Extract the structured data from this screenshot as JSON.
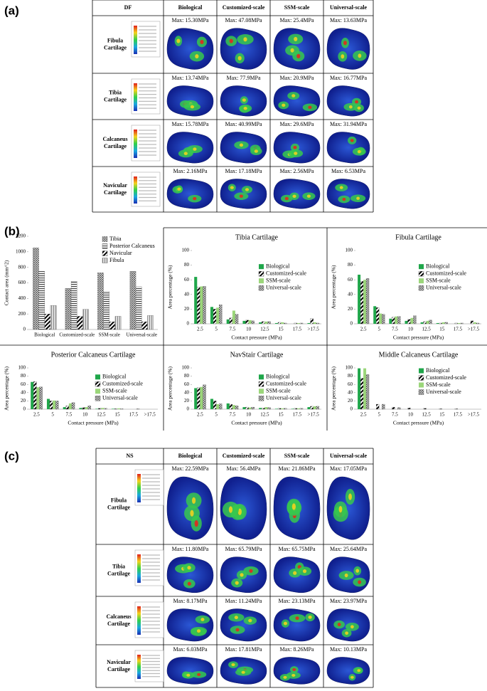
{
  "panel_a": {
    "label": "(a)",
    "header": [
      "DF",
      "Biological",
      "Customized-scale",
      "SSM-scale",
      "Universal-scale"
    ],
    "rows": [
      {
        "label": [
          "Fibula",
          "Cartilage"
        ],
        "maxima": [
          "Max: 15.30MPa",
          "Max: 47.08MPa",
          "Max: 25.4MPa",
          "Max: 13.63MPa"
        ]
      },
      {
        "label": [
          "Tibia",
          "Cartilage"
        ],
        "maxima": [
          "Max: 13.74MPa",
          "Max: 77.9MPa",
          "Max: 20.9MPa",
          "Max: 16.77MPa"
        ]
      },
      {
        "label": [
          "Calcaneus",
          "Cartilage"
        ],
        "maxima": [
          "Max: 15.78MPa",
          "Max: 40.99MPa",
          "Max: 29.6MPa",
          "Max: 31.94MPa"
        ]
      },
      {
        "label": [
          "Navicular",
          "Cartilage"
        ],
        "maxima": [
          "Max: 2.16MPa",
          "Max: 17.18MPa",
          "Max: 2.56MPa",
          "Max: 6.53MPa"
        ]
      }
    ]
  },
  "panel_b": {
    "label": "(b)"
  },
  "chart_data": [
    {
      "type": "bar",
      "ylabel": "Contact area (mm^2)",
      "categories": [
        "Biological",
        "Customized-scale",
        "SSM-scale",
        "Universal-scale"
      ],
      "ylim": [
        0,
        1200
      ],
      "yticks": [
        0,
        200,
        400,
        600,
        800,
        1000,
        1200
      ],
      "legend": "upper right",
      "series": [
        {
          "name": "Tibia",
          "color": "#555555",
          "pattern": "cross",
          "values": [
            1050,
            530,
            730,
            750
          ]
        },
        {
          "name": "Posterior Calcaneus",
          "color": "#555555",
          "pattern": "horizontal",
          "values": [
            750,
            620,
            490,
            550
          ]
        },
        {
          "name": "Navicular",
          "color": "#555555",
          "pattern": "diagonal",
          "values": [
            200,
            170,
            100,
            100
          ]
        },
        {
          "name": "Fibula",
          "color": "#999999",
          "pattern": "vertical",
          "values": [
            310,
            260,
            170,
            180
          ]
        }
      ]
    },
    {
      "type": "bar",
      "title": "Tibia Cartilage",
      "xlabel": "Contact pressure (MPa)",
      "ylabel": "Area percentage (%)",
      "categories": [
        "2.5",
        "5",
        "7.5",
        "10",
        "12.5",
        "15",
        "17.5",
        ">17.5"
      ],
      "ylim": [
        0,
        100
      ],
      "yticks": [
        0,
        20,
        40,
        60,
        80,
        100
      ],
      "legend": "center right",
      "series": [
        {
          "name": "Biological",
          "color": "#1fa64a",
          "pattern": "solid",
          "values": [
            64,
            23,
            6,
            4,
            2,
            1,
            0,
            1
          ]
        },
        {
          "name": "Customized-scale",
          "color": "#2e5fc4",
          "pattern": "diagonal",
          "values": [
            50,
            20,
            8,
            5,
            3,
            2,
            1,
            7
          ]
        },
        {
          "name": "SSM-scale",
          "color": "#9bd67a",
          "pattern": "solid",
          "values": [
            51,
            22,
            18,
            5,
            3,
            2,
            1,
            2
          ]
        },
        {
          "name": "Universal-scale",
          "color": "#777777",
          "pattern": "cross",
          "values": [
            51,
            26,
            13,
            4,
            3,
            1,
            1,
            1
          ]
        }
      ]
    },
    {
      "type": "bar",
      "title": "Fibula Cartilage",
      "xlabel": "Contact pressure (MPa)",
      "ylabel": "Area percentage (%)",
      "categories": [
        "2.5",
        "5",
        "7.5",
        "10",
        "12.5",
        "15",
        "17.5",
        ">17.5"
      ],
      "ylim": [
        0,
        100
      ],
      "yticks": [
        0,
        20,
        40,
        60,
        80,
        100
      ],
      "legend": "center right",
      "series": [
        {
          "name": "Biological",
          "color": "#1fa64a",
          "pattern": "solid",
          "values": [
            67,
            24,
            7,
            4,
            2,
            1,
            0,
            0
          ]
        },
        {
          "name": "Customized-scale",
          "color": "#2e5fc4",
          "pattern": "diagonal",
          "values": [
            58,
            22,
            9,
            6,
            3,
            1,
            1,
            4
          ]
        },
        {
          "name": "SSM-scale",
          "color": "#9bd67a",
          "pattern": "solid",
          "values": [
            60,
            14,
            10,
            8,
            4,
            2,
            1,
            2
          ]
        },
        {
          "name": "Universal-scale",
          "color": "#777777",
          "pattern": "cross",
          "values": [
            62,
            13,
            10,
            11,
            5,
            2,
            1,
            1
          ]
        }
      ]
    },
    {
      "type": "bar",
      "title": "Posterior Calcaneus Cartilage",
      "xlabel": "Contact pressure (MPa)",
      "ylabel": "Area percentage (%)",
      "categories": [
        "2.5",
        "5",
        "7.5",
        "10",
        "12.5",
        "15",
        "17.5",
        ">17.5"
      ],
      "ylim": [
        0,
        100
      ],
      "yticks": [
        0,
        20,
        40,
        60,
        80,
        100
      ],
      "legend": "center right",
      "series": [
        {
          "name": "Biological",
          "color": "#1fa64a",
          "pattern": "solid",
          "values": [
            66,
            25,
            5,
            3,
            1,
            1,
            0,
            0
          ]
        },
        {
          "name": "Customized-scale",
          "color": "#2e5fc4",
          "pattern": "diagonal",
          "values": [
            67,
            20,
            8,
            4,
            2,
            1,
            0,
            0
          ]
        },
        {
          "name": "SSM-scale",
          "color": "#9bd67a",
          "pattern": "solid",
          "values": [
            53,
            21,
            14,
            5,
            3,
            2,
            0,
            0
          ]
        },
        {
          "name": "Universal-scale",
          "color": "#777777",
          "pattern": "cross",
          "values": [
            54,
            20,
            16,
            8,
            2,
            1,
            1,
            0
          ]
        }
      ]
    },
    {
      "type": "bar",
      "title": "NavStair Cartilage",
      "xlabel": "Contact pressure (MPa)",
      "ylabel": "Area percentage (%)",
      "categories": [
        "2.5",
        "5",
        "7.5",
        "10",
        "12.5",
        "15",
        "17.5",
        ">17.5"
      ],
      "ylim": [
        0,
        100
      ],
      "yticks": [
        0,
        20,
        40,
        60,
        80,
        100
      ],
      "legend": "center right",
      "series": [
        {
          "name": "Biological",
          "color": "#1fa64a",
          "pattern": "solid",
          "values": [
            51,
            25,
            14,
            5,
            3,
            1,
            1,
            5
          ]
        },
        {
          "name": "Customized-scale",
          "color": "#2e5fc4",
          "pattern": "diagonal",
          "values": [
            52,
            20,
            12,
            5,
            3,
            2,
            2,
            7
          ]
        },
        {
          "name": "SSM-scale",
          "color": "#9bd67a",
          "pattern": "solid",
          "values": [
            54,
            12,
            10,
            4,
            5,
            2,
            2,
            7
          ]
        },
        {
          "name": "Universal-scale",
          "color": "#777777",
          "pattern": "cross",
          "values": [
            59,
            13,
            8,
            5,
            4,
            2,
            2,
            7
          ]
        }
      ]
    },
    {
      "type": "bar",
      "title": "Middle Calcaneus Cartilage",
      "xlabel": "Contact pressure (MPa)",
      "ylabel": "Area percentage (%)",
      "categories": [
        "2.5",
        "5",
        "7.5",
        "10",
        "12.5",
        "15",
        "17.5",
        ">17.5"
      ],
      "ylim": [
        0,
        100
      ],
      "yticks": [
        0,
        20,
        40,
        60,
        80,
        100
      ],
      "legend": "upper right",
      "series": [
        {
          "name": "Biological",
          "color": "#1fa64a",
          "pattern": "solid",
          "values": [
            99,
            0,
            0,
            0,
            0,
            0,
            0,
            0
          ]
        },
        {
          "name": "Customized-scale",
          "color": "#2e5fc4",
          "pattern": "diagonal",
          "values": [
            75,
            12,
            5,
            3,
            2,
            1,
            1,
            0
          ]
        },
        {
          "name": "SSM-scale",
          "color": "#9bd67a",
          "pattern": "solid",
          "values": [
            99,
            0,
            0,
            0,
            0,
            0,
            0,
            0
          ]
        },
        {
          "name": "Universal-scale",
          "color": "#777777",
          "pattern": "cross",
          "values": [
            84,
            12,
            4,
            0,
            0,
            0,
            0,
            0
          ]
        }
      ]
    }
  ],
  "panel_c": {
    "label": "(c)",
    "header": [
      "NS",
      "Biological",
      "Customized-scale",
      "SSM-scale",
      "Universal-scale"
    ],
    "rows": [
      {
        "label": [
          "Fibula",
          "Cartilage"
        ],
        "maxima": [
          "Max: 22.59MPa",
          "Max: 56.4MPa",
          "Max: 21.86MPa",
          "Max: 17.05MPa"
        ]
      },
      {
        "label": [
          "Tibia",
          "Cartilage"
        ],
        "maxima": [
          "Max: 11.80MPa",
          "Max: 65.79MPa",
          "Max: 65.75MPa",
          "Max: 25.64MPa"
        ]
      },
      {
        "label": [
          "Calcaneus",
          "Cartilage"
        ],
        "maxima": [
          "Max: 8.17MPa",
          "Max: 11.24MPa",
          "Max: 23.13MPa",
          "Max: 23.97MPa"
        ]
      },
      {
        "label": [
          "Navicular",
          "Cartilage"
        ],
        "maxima": [
          "Max: 6.03MPa",
          "Max: 17.81MPa",
          "Max: 8.26MPa",
          "Max: 10.13MPa"
        ]
      }
    ]
  }
}
